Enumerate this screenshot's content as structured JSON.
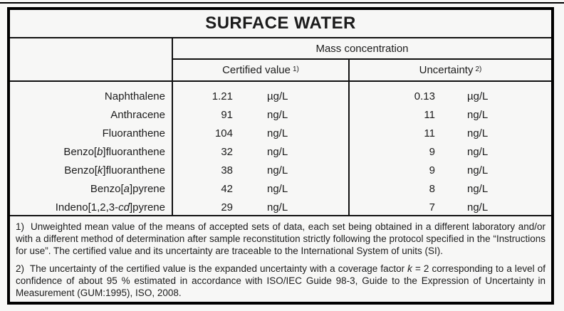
{
  "title": "SURFACE WATER",
  "table": {
    "group_header": "Mass concentration",
    "columns": {
      "certified_html": "Certified value <sup>1)</sup>",
      "uncertainty_html": "Uncertainty <sup>2)</sup>"
    },
    "rows": [
      {
        "name_html": "Naphthalene",
        "certified": {
          "value": "1.21",
          "unit": "µg/L"
        },
        "uncertainty": {
          "value": "0.13",
          "unit": "µg/L"
        }
      },
      {
        "name_html": "Anthracene",
        "certified": {
          "value": "91",
          "unit": "ng/L"
        },
        "uncertainty": {
          "value": "11",
          "unit": "ng/L"
        }
      },
      {
        "name_html": "Fluoranthene",
        "certified": {
          "value": "104",
          "unit": "ng/L"
        },
        "uncertainty": {
          "value": "11",
          "unit": "ng/L"
        }
      },
      {
        "name_html": "Benzo[<i>b</i>]fluoranthene",
        "certified": {
          "value": "32",
          "unit": "ng/L"
        },
        "uncertainty": {
          "value": "9",
          "unit": "ng/L"
        }
      },
      {
        "name_html": "Benzo[<i>k</i>]fluoranthene",
        "certified": {
          "value": "38",
          "unit": "ng/L"
        },
        "uncertainty": {
          "value": "9",
          "unit": "ng/L"
        }
      },
      {
        "name_html": "Benzo[<i>a</i>]pyrene",
        "certified": {
          "value": "42",
          "unit": "ng/L"
        },
        "uncertainty": {
          "value": "8",
          "unit": "ng/L"
        }
      },
      {
        "name_html": "Indeno[1,2,3-<i>cd</i>]pyrene",
        "certified": {
          "value": "29",
          "unit": "ng/L"
        },
        "uncertainty": {
          "value": "7",
          "unit": "ng/L"
        }
      }
    ]
  },
  "footnotes": {
    "note1_html": "1)&nbsp; Unweighted mean value of the means of accepted sets of data, each set being obtained in a different laboratory and/or with a different method of determination after sample reconstitution strictly following the protocol specified in the “Instructions for use”. The certified value and its uncertainty are traceable to the International System of units (SI).",
    "note2_html": "2)&nbsp; The uncertainty of the certified value is the expanded uncertainty with a coverage factor <i>k</i> = 2 corresponding to a level of confidence of about 95 % estimated in accordance with ISO/IEC Guide 98-3, Guide to the Expression of Uncertainty in Measurement (GUM:1995), ISO, 2008."
  },
  "colors": {
    "border": "#000000",
    "background": "#f7f7f6",
    "text": "#1c1c1c"
  }
}
